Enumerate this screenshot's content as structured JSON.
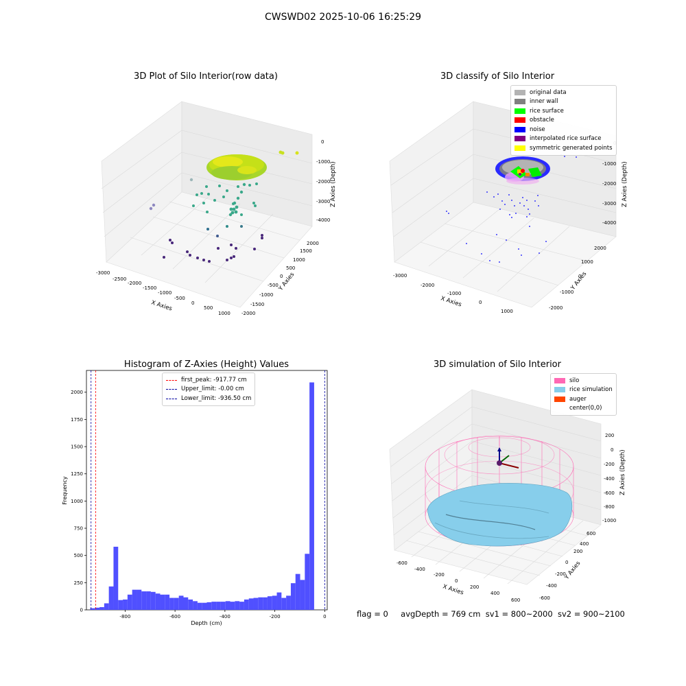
{
  "suptitle": "CWSWD02 2025-10-06 16:25:29",
  "chart_data": [
    {
      "type": "scatter",
      "title": "3D Plot of Silo Interior(row data)",
      "xlabel": "X Axies",
      "ylabel": "Y Axies",
      "zlabel": "Z Axies (Depth)",
      "x_ticks": [
        -3000,
        -2500,
        -2000,
        -1500,
        -1000,
        -500,
        0,
        500,
        1000
      ],
      "y_ticks": [
        -2000,
        -1500,
        -1000,
        -500,
        0,
        500,
        1000,
        1500,
        2000
      ],
      "z_ticks": [
        0,
        -1000,
        -2000,
        -3000,
        -4000
      ],
      "xlim": [
        -3000,
        1000
      ],
      "ylim": [
        -2000,
        2000
      ],
      "zlim": [
        -4500,
        0
      ],
      "colormap": "viridis (by depth)"
    },
    {
      "type": "scatter",
      "title": "3D classify of Silo Interior",
      "xlabel": "X Axies",
      "ylabel": "Y Axies",
      "zlabel": "Z Axies (Depth)",
      "x_ticks": [
        -3000,
        -2000,
        -1000,
        0,
        1000
      ],
      "y_ticks": [
        -2000,
        -1000,
        0,
        1000,
        2000
      ],
      "z_ticks": [
        0,
        -1000,
        -2000,
        -3000,
        -4000
      ],
      "legend_position": "top-right",
      "legend": [
        {
          "label": "original data",
          "color": "#b3b3b3"
        },
        {
          "label": "inner wall",
          "color": "#808080"
        },
        {
          "label": "rice surface",
          "color": "#00ff00"
        },
        {
          "label": "obstacle",
          "color": "#ff0000"
        },
        {
          "label": "noise",
          "color": "#0000ff"
        },
        {
          "label": "interpolated rice surface",
          "color": "#800080"
        },
        {
          "label": "symmetric generated points",
          "color": "#ffff00"
        }
      ]
    },
    {
      "type": "bar",
      "title": "Histogram of Z-Axies (Height) Values",
      "xlabel": "Depth (cm)",
      "ylabel": "Frequency",
      "xlim": [
        -955,
        10
      ],
      "ylim": [
        0,
        2200
      ],
      "x_ticks": [
        -800,
        -600,
        -400,
        -200,
        0
      ],
      "y_ticks": [
        0,
        250,
        500,
        750,
        1000,
        1250,
        1500,
        1750,
        2000
      ],
      "bin_start": -940,
      "bin_width": 18.7,
      "values": [
        15,
        20,
        25,
        60,
        215,
        580,
        90,
        95,
        140,
        185,
        185,
        170,
        170,
        165,
        150,
        140,
        140,
        110,
        110,
        130,
        115,
        95,
        80,
        65,
        65,
        70,
        75,
        75,
        75,
        80,
        75,
        80,
        75,
        95,
        105,
        110,
        115,
        115,
        125,
        130,
        160,
        110,
        130,
        245,
        330,
        275,
        515,
        2090
      ],
      "bar_color": "#5050ff",
      "vlines": [
        {
          "label": "first_peak: -917.77 cm",
          "x": -917.77,
          "color": "#ff0000"
        },
        {
          "label": "Upper_limit: -0.00 cm",
          "x": 0,
          "color": "#0000a0"
        },
        {
          "label": "Lower_limit: -936.50 cm",
          "x": -936.5,
          "color": "#0000a0"
        }
      ],
      "legend_position": "top-center"
    },
    {
      "type": "scatter",
      "title": "3D simulation of Silo Interior",
      "xlabel": "X Axies",
      "ylabel": "Y Axies",
      "zlabel": "Z Axies (Depth)",
      "x_ticks": [
        -600,
        -400,
        -200,
        0,
        200,
        400,
        600
      ],
      "y_ticks": [
        -600,
        -400,
        -200,
        0,
        200,
        400,
        600
      ],
      "z_ticks": [
        200,
        0,
        -200,
        -400,
        -600,
        -800,
        -1000
      ],
      "legend_position": "top-right",
      "legend": [
        {
          "label": "silo",
          "color": "#ff69b4"
        },
        {
          "label": "rice simulation",
          "color": "#87ceeb"
        },
        {
          "label": "auger",
          "color": "#ff4500"
        },
        {
          "label": "center(0,0)",
          "color": "#ffffff"
        }
      ]
    }
  ],
  "footer": {
    "flag": "flag = 0",
    "avg": "avgDepth = 769 cm",
    "sv1": "sv1 = 800~2000",
    "sv2": "sv2 = 900~2100"
  }
}
